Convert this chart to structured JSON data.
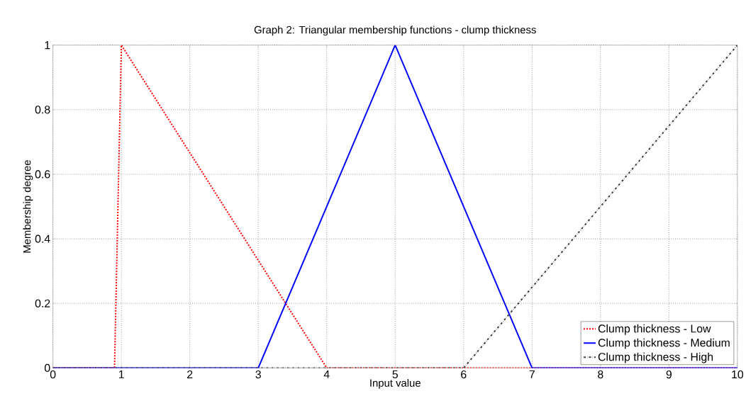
{
  "chart_data": {
    "type": "line",
    "title": "Graph 2: Triangular membership functions - clump thickness",
    "xlabel": "Input value",
    "ylabel": "Membership degree",
    "xlim": [
      0,
      10
    ],
    "ylim": [
      0,
      1
    ],
    "xticks": [
      0,
      1,
      2,
      3,
      4,
      5,
      6,
      7,
      8,
      9,
      10
    ],
    "yticks": [
      0,
      0.2,
      0.4,
      0.6,
      0.8,
      1
    ],
    "grid": true,
    "legend": "bottom right",
    "marker": "none",
    "series": [
      {
        "name": "Clump thickness - Low",
        "color": "#ff0000",
        "line_style": "dotted",
        "x": [
          0,
          0.9,
          1,
          4,
          10
        ],
        "values": [
          0,
          0,
          1,
          0,
          0
        ]
      },
      {
        "name": "Clump thickness - Medium",
        "color": "#0000ff",
        "line_style": "solid",
        "x": [
          0,
          3,
          5,
          7,
          10
        ],
        "values": [
          0,
          0,
          1,
          0,
          0
        ]
      },
      {
        "name": "Clump thickness - High",
        "color": "#404040",
        "line_style": "dashed",
        "x": [
          0,
          6,
          10
        ],
        "values": [
          0,
          0,
          1
        ]
      }
    ]
  }
}
